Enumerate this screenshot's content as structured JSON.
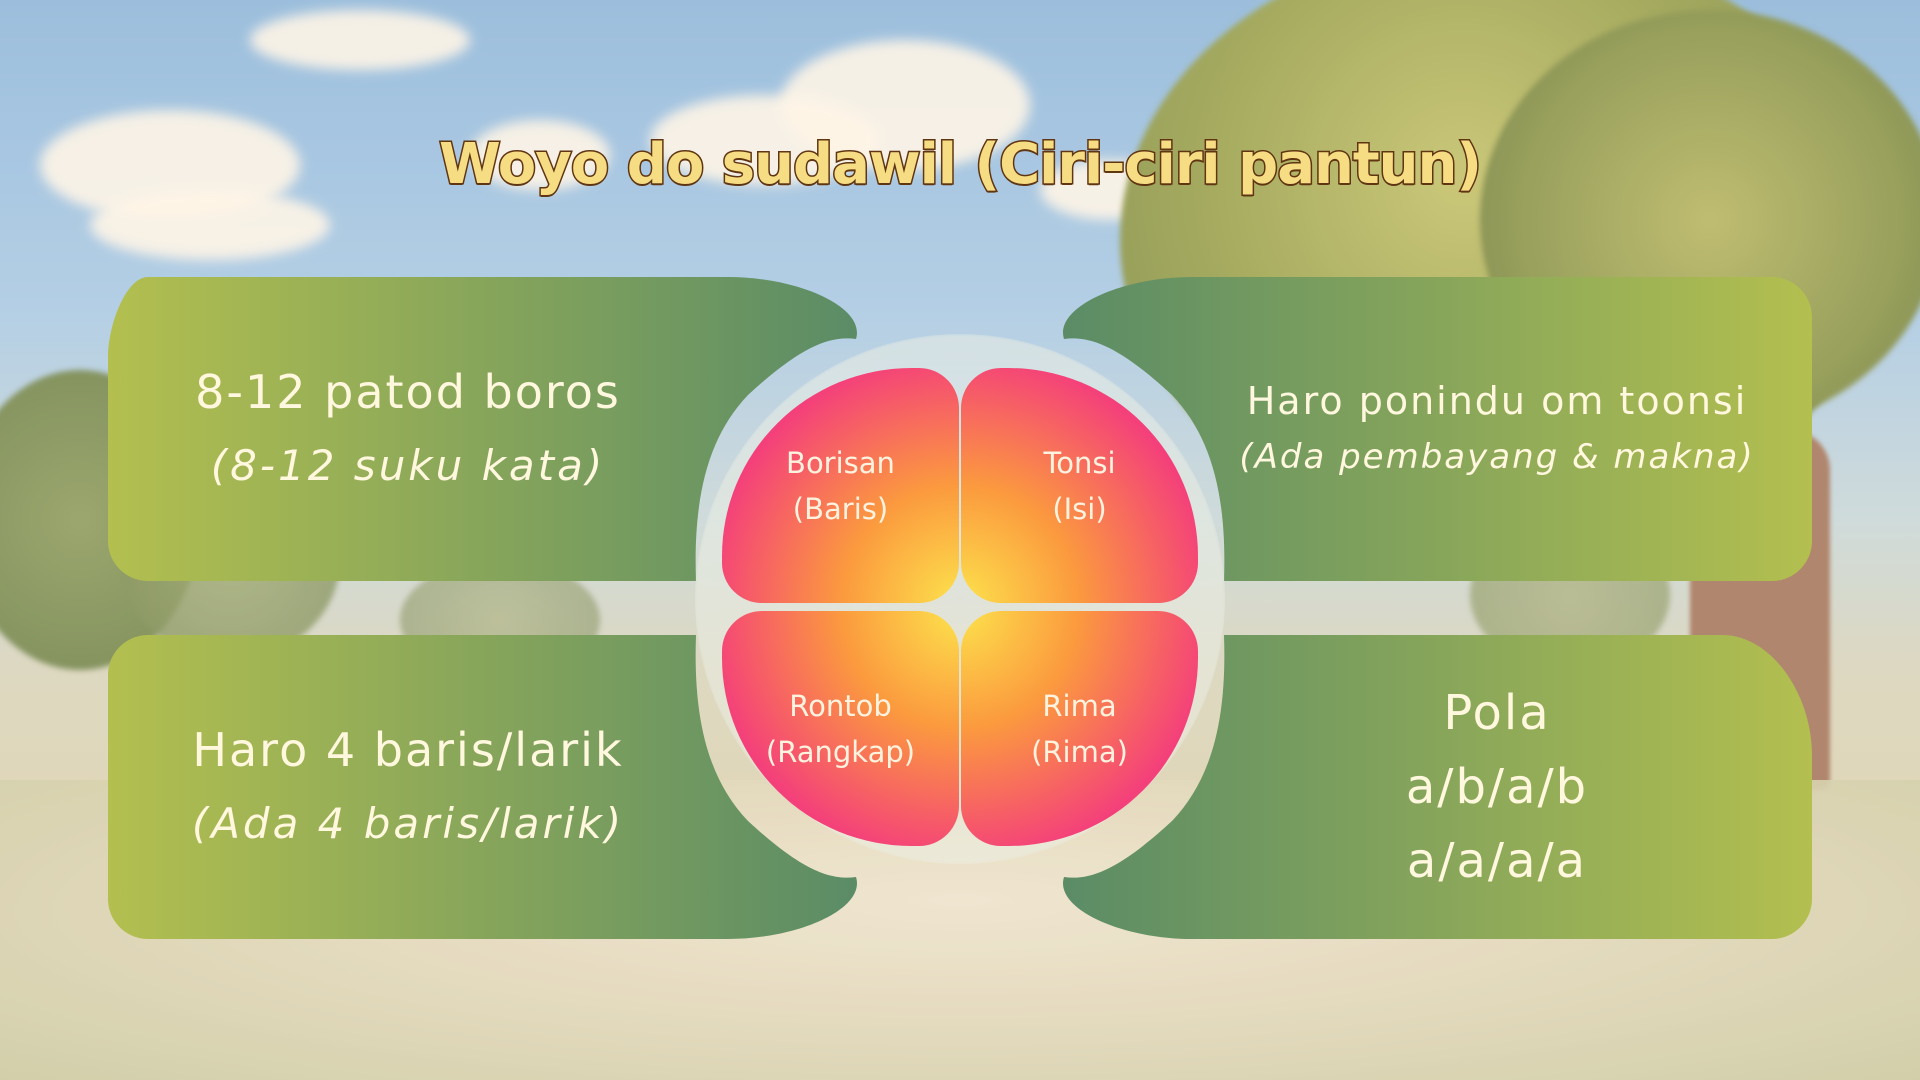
{
  "title": "Woyo do sudawil  (Ciri-ciri pantun)",
  "leaves": {
    "top_left": {
      "main": "8-12 patod boros",
      "sub": "(8-12 suku kata)"
    },
    "top_right": {
      "main": "Haro ponindu om toonsi",
      "sub": "(Ada pembayang & makna)"
    },
    "bottom_left": {
      "main": "Haro 4 baris/larik",
      "sub": "(Ada 4 baris/larik)"
    },
    "bottom_right": {
      "title": "Pola",
      "line1": "a/b/a/b",
      "line2": "a/a/a/a"
    }
  },
  "petals": {
    "top_left": {
      "label": "Borisan",
      "sub": "(Baris)"
    },
    "top_right": {
      "label": "Tonsi",
      "sub": "(Isi)"
    },
    "bottom_left": {
      "label": "Rontob",
      "sub": "(Rangkap)"
    },
    "bottom_right": {
      "label": "Rima",
      "sub": "(Rima)"
    }
  },
  "colors": {
    "leaf_light": "#b3bf4f",
    "leaf_dark": "#5b8c66",
    "petal_center": "#fde24c",
    "petal_edge": "#ef1e8a",
    "title_fill": "#f6dc83",
    "title_stroke": "#5f3512"
  }
}
